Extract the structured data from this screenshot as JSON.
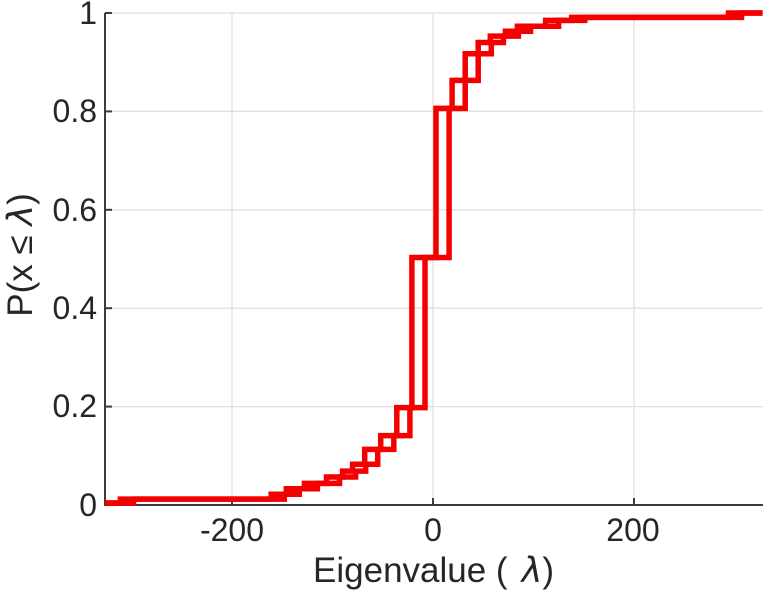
{
  "figure": {
    "x_axis_label_prefix": "Eigenvalue (",
    "x_axis_label_lambda": "λ",
    "x_axis_label_suffix": ")",
    "y_axis_label_prefix": "P(x ≤ ",
    "y_axis_label_lambda": "λ",
    "y_axis_label_suffix": ")"
  },
  "chart_data": {
    "type": "line",
    "subtype": "empirical-cdf-stairs",
    "title": "",
    "xlabel": "Eigenvalue (λ)",
    "ylabel": "P(x ≤ λ)",
    "xlim": [
      -326,
      328
    ],
    "ylim": [
      0,
      1
    ],
    "x_ticks": [
      -200,
      0,
      200
    ],
    "x_tick_labels": [
      "-200",
      "0",
      "200"
    ],
    "y_ticks": [
      0,
      0.2,
      0.4,
      0.6,
      0.8,
      1
    ],
    "y_tick_labels": [
      "0",
      "0.2",
      "0.4",
      "0.6",
      "0.8",
      "1"
    ],
    "grid": true,
    "legend": "none",
    "colors": {
      "line": "#f40000",
      "axis": "#3b3b3b",
      "grid": "#e0e0e0",
      "text": "#262626"
    },
    "line_width": 5.5,
    "series": [
      {
        "name": "ecdf-curve-1",
        "start": [
          -326,
          0.004
        ],
        "steps": [
          [
            -311,
            0.012
          ],
          [
            -161,
            0.022
          ],
          [
            -146,
            0.033
          ],
          [
            -128,
            0.044
          ],
          [
            -106,
            0.057
          ],
          [
            -90,
            0.069
          ],
          [
            -80,
            0.083
          ],
          [
            -68,
            0.113
          ],
          [
            -52,
            0.141
          ],
          [
            -36,
            0.198
          ],
          [
            -21,
            0.503
          ],
          [
            3,
            0.806
          ],
          [
            19,
            0.863
          ],
          [
            32,
            0.917
          ],
          [
            45,
            0.94
          ],
          [
            57,
            0.953
          ],
          [
            72,
            0.963
          ],
          [
            84,
            0.973
          ],
          [
            112,
            0.985
          ],
          [
            138,
            0.991
          ],
          [
            294,
            1.0
          ]
        ],
        "end_x": 328
      },
      {
        "name": "ecdf-curve-2",
        "start": [
          -326,
          0.004
        ],
        "steps": [
          [
            -298,
            0.012
          ],
          [
            -148,
            0.022
          ],
          [
            -133,
            0.033
          ],
          [
            -115,
            0.044
          ],
          [
            -93,
            0.057
          ],
          [
            -77,
            0.069
          ],
          [
            -67,
            0.083
          ],
          [
            -55,
            0.113
          ],
          [
            -39,
            0.141
          ],
          [
            -23,
            0.198
          ],
          [
            -8,
            0.503
          ],
          [
            16,
            0.806
          ],
          [
            32,
            0.863
          ],
          [
            45,
            0.917
          ],
          [
            58,
            0.94
          ],
          [
            70,
            0.953
          ],
          [
            85,
            0.963
          ],
          [
            97,
            0.973
          ],
          [
            125,
            0.985
          ],
          [
            151,
            0.991
          ],
          [
            307,
            1.0
          ]
        ],
        "end_x": 328
      }
    ]
  }
}
